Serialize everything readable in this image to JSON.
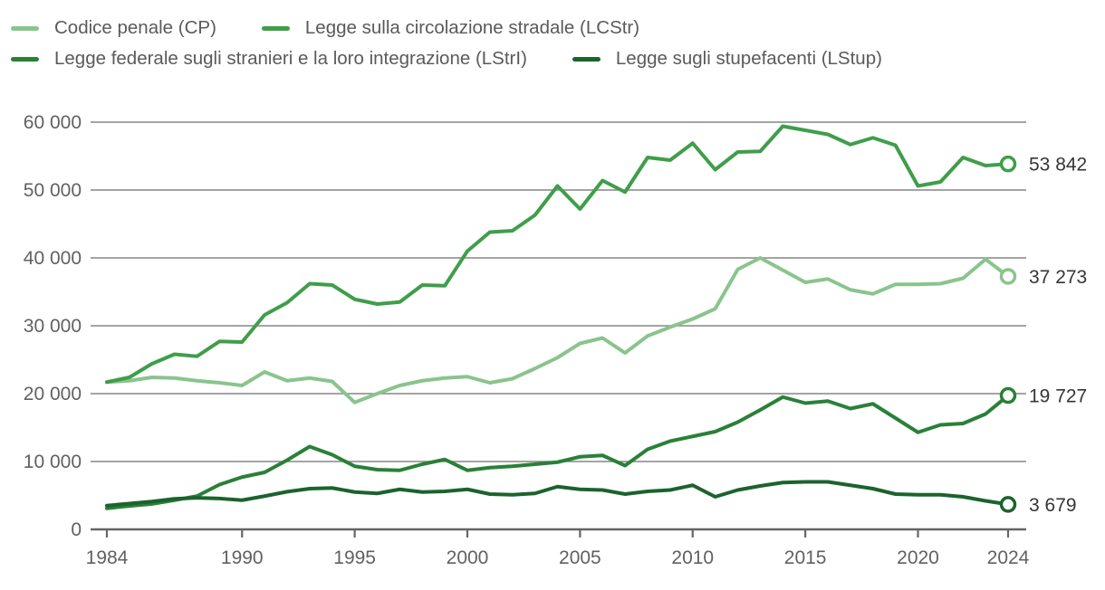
{
  "legend": {
    "items": [
      {
        "id": "cp",
        "label": "Codice penale (CP)",
        "color": "#8ac48d"
      },
      {
        "id": "lcstr",
        "label": "Legge sulla circolazione stradale (LCStr)",
        "color": "#3f9e4a"
      },
      {
        "id": "lstri",
        "label": "Legge federale sugli stranieri e la loro integrazione (LStrI)",
        "color": "#2a8038"
      },
      {
        "id": "lstup",
        "label": "Legge sugli stupefacenti (LStup)",
        "color": "#1b632d"
      }
    ]
  },
  "chart_data": {
    "type": "line",
    "title": "",
    "xlabel": "",
    "ylabel": "",
    "grid": "horizontal",
    "legend_position": "top-left",
    "ylim": [
      0,
      60000
    ],
    "x_start": 1984,
    "x_end": 2024,
    "x": [
      1984,
      1985,
      1986,
      1987,
      1988,
      1989,
      1990,
      1991,
      1992,
      1993,
      1994,
      1995,
      1996,
      1997,
      1998,
      1999,
      2000,
      2001,
      2002,
      2003,
      2004,
      2005,
      2006,
      2007,
      2008,
      2009,
      2010,
      2011,
      2012,
      2013,
      2014,
      2015,
      2016,
      2017,
      2018,
      2019,
      2020,
      2021,
      2022,
      2023,
      2024
    ],
    "y_ticks": [
      {
        "value": 0,
        "label": "0"
      },
      {
        "value": 10000,
        "label": "10 000"
      },
      {
        "value": 20000,
        "label": "20 000"
      },
      {
        "value": 30000,
        "label": "30 000"
      },
      {
        "value": 40000,
        "label": "40 000"
      },
      {
        "value": 50000,
        "label": "50 000"
      },
      {
        "value": 60000,
        "label": "60 000"
      }
    ],
    "x_ticks": [
      {
        "value": 1984,
        "label": "1984"
      },
      {
        "value": 1990,
        "label": "1990"
      },
      {
        "value": 1995,
        "label": "1995"
      },
      {
        "value": 2000,
        "label": "2000"
      },
      {
        "value": 2005,
        "label": "2005"
      },
      {
        "value": 2010,
        "label": "2010"
      },
      {
        "value": 2015,
        "label": "2015"
      },
      {
        "value": 2020,
        "label": "2020"
      },
      {
        "value": 2024,
        "label": "2024"
      }
    ],
    "series": [
      {
        "id": "cp",
        "name": "Codice penale (CP)",
        "color": "#8ac48d",
        "end_label": "37 273",
        "end_value": 37273,
        "values": [
          21700,
          21900,
          22400,
          22300,
          21900,
          21600,
          21200,
          23200,
          21900,
          22300,
          21800,
          18700,
          20000,
          21200,
          21900,
          22300,
          22500,
          21600,
          22200,
          23700,
          25300,
          27400,
          28200,
          26000,
          28500,
          29800,
          31000,
          32500,
          38300,
          40000,
          38200,
          36400,
          36900,
          35300,
          34700,
          36100,
          36100,
          36200,
          37000,
          39800,
          37273
        ]
      },
      {
        "id": "lcstr",
        "name": "Legge sulla circolazione stradale (LCStr)",
        "color": "#3f9e4a",
        "end_label": "53 842",
        "end_value": 53842,
        "values": [
          21700,
          22400,
          24400,
          25800,
          25500,
          27700,
          27600,
          31600,
          33400,
          36200,
          36000,
          33900,
          33200,
          33500,
          36000,
          35900,
          41000,
          43800,
          44000,
          46300,
          50600,
          47200,
          51400,
          49700,
          54800,
          54400,
          56900,
          53000,
          55600,
          55700,
          59400,
          58800,
          58200,
          56700,
          57700,
          56600,
          50600,
          51200,
          54800,
          53600,
          53842
        ]
      },
      {
        "id": "lstri",
        "name": "Legge federale sugli stranieri e la loro integrazione (LStrI)",
        "color": "#2a8038",
        "end_label": "19 727",
        "end_value": 19727,
        "values": [
          3100,
          3450,
          3750,
          4300,
          4900,
          6600,
          7700,
          8400,
          10200,
          12200,
          11000,
          9300,
          8800,
          8700,
          9600,
          10300,
          8700,
          9100,
          9300,
          9600,
          9900,
          10700,
          10900,
          9400,
          11800,
          13000,
          13700,
          14400,
          15800,
          17600,
          19500,
          18600,
          18900,
          17800,
          18500,
          16400,
          14300,
          15400,
          15600,
          17000,
          19727
        ]
      },
      {
        "id": "lstup",
        "name": "Legge sugli stupefacenti (LStup)",
        "color": "#1b632d",
        "end_label": "3 679",
        "end_value": 3679,
        "values": [
          3500,
          3800,
          4100,
          4500,
          4650,
          4550,
          4300,
          4900,
          5550,
          6000,
          6100,
          5500,
          5300,
          5900,
          5500,
          5600,
          5900,
          5200,
          5100,
          5300,
          6300,
          5900,
          5800,
          5200,
          5600,
          5800,
          6500,
          4800,
          5800,
          6400,
          6900,
          7000,
          7000,
          6500,
          6000,
          5200,
          5100,
          5100,
          4800,
          4200,
          3679
        ]
      }
    ]
  }
}
